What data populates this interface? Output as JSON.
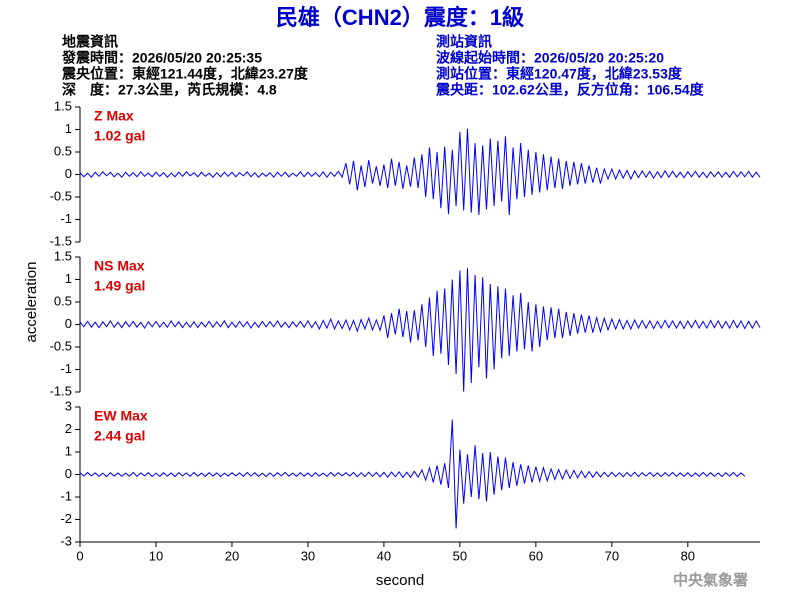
{
  "header": {
    "title": "民雄（CHN2）震度：1級",
    "left_info": [
      "地震資訊",
      "發震時間：2026/05/20 20:25:35",
      "震央位置：東經121.44度，北緯23.27度",
      "深　度：27.3公里，芮氏規模：4.8"
    ],
    "right_info": [
      "測站資訊",
      "波線起始時間：2026/05/20 20:25:20",
      "測站位置：東經120.47度，北緯23.53度",
      "震央距：102.62公里，反方位角：106.54度"
    ],
    "footer": "中央氣象署"
  },
  "chart_data": {
    "type": "line",
    "xlabel": "second",
    "ylabel": "acceleration",
    "xlim": [
      0,
      89.5
    ],
    "xticks": [
      0,
      10,
      20,
      30,
      40,
      50,
      60,
      70,
      80
    ],
    "x": [
      0,
      0.5,
      1,
      1.5,
      2,
      2.5,
      3,
      3.5,
      4,
      4.5,
      5,
      5.5,
      6,
      6.5,
      7,
      7.5,
      8,
      8.5,
      9,
      9.5,
      10,
      10.5,
      11,
      11.5,
      12,
      12.5,
      13,
      13.5,
      14,
      14.5,
      15,
      15.5,
      16,
      16.5,
      17,
      17.5,
      18,
      18.5,
      19,
      19.5,
      20,
      20.5,
      21,
      21.5,
      22,
      22.5,
      23,
      23.5,
      24,
      24.5,
      25,
      25.5,
      26,
      26.5,
      27,
      27.5,
      28,
      28.5,
      29,
      29.5,
      30,
      30.5,
      31,
      31.5,
      32,
      32.5,
      33,
      33.5,
      34,
      34.5,
      35,
      35.5,
      36,
      36.5,
      37,
      37.5,
      38,
      38.5,
      39,
      39.5,
      40,
      40.5,
      41,
      41.5,
      42,
      42.5,
      43,
      43.5,
      44,
      44.5,
      45,
      45.5,
      46,
      46.5,
      47,
      47.5,
      48,
      48.5,
      49,
      49.5,
      50,
      50.5,
      51,
      51.5,
      52,
      52.5,
      53,
      53.5,
      54,
      54.5,
      55,
      55.5,
      56,
      56.5,
      57,
      57.5,
      58,
      58.5,
      59,
      59.5,
      60,
      60.5,
      61,
      61.5,
      62,
      62.5,
      63,
      63.5,
      64,
      64.5,
      65,
      65.5,
      66,
      66.5,
      67,
      67.5,
      68,
      68.5,
      69,
      69.5,
      70,
      70.5,
      71,
      71.5,
      72,
      72.5,
      73,
      73.5,
      74,
      74.5,
      75,
      75.5,
      76,
      76.5,
      77,
      77.5,
      78,
      78.5,
      79,
      79.5,
      80,
      80.5,
      81,
      81.5,
      82,
      82.5,
      83,
      83.5,
      84,
      84.5,
      85,
      85.5,
      86,
      86.5,
      87,
      87.5,
      88,
      88.5,
      89,
      89.5
    ],
    "panels": [
      {
        "label": "Z Max",
        "max_label": "1.02 gal",
        "color": "#0000ff",
        "label_color": "#e00000",
        "ylim": [
          -1.5,
          1.5
        ],
        "yticks": [
          -1.5,
          -1,
          -0.5,
          0,
          0.5,
          1,
          1.5
        ],
        "values": [
          0.04,
          -0.05,
          0.03,
          -0.06,
          0.05,
          -0.04,
          0.06,
          -0.03,
          0.05,
          -0.05,
          0.03,
          -0.06,
          0.05,
          -0.04,
          0.04,
          -0.05,
          0.06,
          -0.04,
          0.03,
          -0.05,
          0.05,
          -0.04,
          0.04,
          -0.06,
          0.03,
          -0.05,
          0.05,
          -0.04,
          0.06,
          -0.03,
          0.04,
          -0.05,
          0.05,
          -0.04,
          0.03,
          -0.06,
          0.04,
          -0.05,
          0.05,
          -0.04,
          0.05,
          -0.05,
          0.04,
          -0.03,
          0.06,
          -0.05,
          0.04,
          -0.06,
          0.03,
          -0.04,
          0.04,
          -0.06,
          0.05,
          -0.04,
          0.05,
          -0.05,
          0.03,
          -0.04,
          0.06,
          -0.05,
          0.05,
          -0.04,
          0.04,
          -0.05,
          0.06,
          -0.06,
          0.05,
          -0.04,
          0.07,
          -0.06,
          0.25,
          -0.22,
          0.3,
          -0.35,
          0.2,
          -0.28,
          0.32,
          -0.2,
          0.18,
          -0.25,
          0.22,
          -0.3,
          0.35,
          -0.25,
          0.28,
          -0.32,
          0.2,
          -0.27,
          0.38,
          -0.3,
          0.45,
          -0.5,
          0.6,
          -0.55,
          0.5,
          -0.75,
          0.62,
          -0.88,
          0.55,
          -0.7,
          0.95,
          -0.8,
          1.02,
          -0.85,
          0.7,
          -0.9,
          0.65,
          -0.78,
          0.8,
          -0.7,
          0.75,
          -0.6,
          0.85,
          -0.9,
          0.6,
          -0.55,
          0.7,
          -0.5,
          0.55,
          -0.45,
          0.5,
          -0.4,
          0.45,
          -0.35,
          0.4,
          -0.3,
          0.35,
          -0.32,
          0.3,
          -0.25,
          0.28,
          -0.22,
          0.25,
          -0.2,
          0.2,
          -0.18,
          0.15,
          -0.2,
          0.12,
          -0.1,
          0.12,
          -0.1,
          0.1,
          -0.08,
          0.09,
          -0.1,
          0.08,
          -0.07,
          0.08,
          -0.06,
          0.07,
          -0.08,
          0.06,
          -0.07,
          0.08,
          -0.06,
          0.07,
          -0.06,
          0.05,
          -0.07,
          0.06,
          -0.05,
          0.07,
          -0.06,
          0.05,
          -0.07,
          0.06,
          -0.05,
          0.06,
          -0.06,
          0.05,
          -0.06,
          0.07,
          -0.05,
          0.06,
          -0.05,
          0.07,
          -0.06,
          0.05,
          -0.06
        ]
      },
      {
        "label": "NS Max",
        "max_label": "1.49 gal",
        "color": "#0000ff",
        "label_color": "#e00000",
        "ylim": [
          -1.5,
          1.5
        ],
        "yticks": [
          -1.5,
          -1,
          -0.5,
          0,
          0.5,
          1,
          1.5
        ],
        "values": [
          0.06,
          -0.05,
          0.07,
          -0.06,
          0.05,
          -0.07,
          0.06,
          -0.05,
          0.08,
          -0.06,
          0.05,
          -0.07,
          0.06,
          -0.05,
          0.07,
          -0.06,
          0.05,
          -0.08,
          0.06,
          -0.05,
          0.07,
          -0.06,
          0.05,
          -0.06,
          0.08,
          -0.05,
          0.06,
          -0.07,
          0.05,
          -0.06,
          0.06,
          -0.07,
          0.05,
          -0.05,
          0.07,
          -0.06,
          0.06,
          -0.05,
          0.08,
          -0.07,
          0.05,
          -0.06,
          0.07,
          -0.05,
          0.06,
          -0.08,
          0.05,
          -0.06,
          0.07,
          -0.05,
          0.06,
          -0.05,
          0.08,
          -0.06,
          0.05,
          -0.07,
          0.06,
          -0.05,
          0.07,
          -0.06,
          0.08,
          -0.07,
          0.06,
          -0.1,
          0.09,
          -0.08,
          0.12,
          -0.1,
          0.08,
          -0.09,
          0.1,
          -0.12,
          0.09,
          -0.15,
          0.11,
          -0.1,
          0.14,
          -0.12,
          0.1,
          -0.13,
          0.2,
          -0.3,
          0.25,
          -0.22,
          0.35,
          -0.28,
          0.3,
          -0.4,
          0.32,
          -0.35,
          0.45,
          -0.5,
          0.6,
          -0.7,
          0.75,
          -0.65,
          0.8,
          -0.9,
          1.0,
          -1.1,
          1.2,
          -1.49,
          1.25,
          -1.3,
          1.1,
          -0.95,
          1.05,
          -1.2,
          0.9,
          -1.0,
          0.85,
          -0.75,
          0.8,
          -0.7,
          0.65,
          -0.6,
          0.7,
          -0.55,
          0.5,
          -0.6,
          0.45,
          -0.5,
          0.4,
          -0.35,
          0.38,
          -0.3,
          0.35,
          -0.3,
          0.28,
          -0.25,
          0.25,
          -0.2,
          0.22,
          -0.18,
          0.2,
          -0.18,
          0.15,
          -0.16,
          0.14,
          -0.12,
          0.12,
          -0.1,
          0.11,
          -0.1,
          0.09,
          -0.1,
          0.1,
          -0.08,
          0.09,
          -0.08,
          0.08,
          -0.09,
          0.07,
          -0.08,
          0.09,
          -0.07,
          0.08,
          -0.08,
          0.07,
          -0.09,
          0.08,
          -0.07,
          0.09,
          -0.08,
          0.07,
          -0.08,
          0.09,
          -0.07,
          0.08,
          -0.08,
          0.07,
          -0.08,
          0.09,
          -0.07,
          0.08,
          -0.09,
          0.07,
          -0.08,
          0.08,
          -0.07
        ]
      },
      {
        "label": "EW Max",
        "max_label": "2.44 gal",
        "color": "#0000ff",
        "label_color": "#e00000",
        "ylim": [
          -3,
          3
        ],
        "yticks": [
          -3,
          -2,
          -1,
          0,
          1,
          2,
          3
        ],
        "values": [
          0.08,
          -0.07,
          0.09,
          -0.06,
          0.07,
          -0.08,
          0.06,
          -0.09,
          0.08,
          -0.07,
          0.07,
          -0.08,
          0.06,
          -0.07,
          0.09,
          -0.08,
          0.07,
          -0.06,
          0.08,
          -0.09,
          0.06,
          -0.08,
          0.08,
          -0.07,
          0.07,
          -0.09,
          0.08,
          -0.06,
          0.07,
          -0.08,
          0.09,
          -0.07,
          0.06,
          -0.08,
          0.08,
          -0.07,
          0.07,
          -0.09,
          0.06,
          -0.07,
          0.08,
          -0.06,
          0.07,
          -0.08,
          0.09,
          -0.07,
          0.08,
          -0.08,
          0.06,
          -0.09,
          0.07,
          -0.08,
          0.08,
          -0.06,
          0.09,
          -0.07,
          0.06,
          -0.08,
          0.08,
          -0.07,
          0.07,
          -0.09,
          0.08,
          -0.07,
          0.06,
          -0.08,
          0.09,
          -0.07,
          0.08,
          -0.06,
          0.08,
          -0.07,
          0.09,
          -0.1,
          0.08,
          -0.09,
          0.1,
          -0.08,
          0.09,
          -0.1,
          0.1,
          -0.12,
          0.11,
          -0.1,
          0.12,
          -0.13,
          0.1,
          -0.12,
          0.14,
          -0.12,
          0.2,
          -0.25,
          0.3,
          -0.35,
          0.4,
          -0.45,
          0.5,
          -0.6,
          2.44,
          -2.4,
          1.1,
          -1.3,
          0.9,
          -1.0,
          1.3,
          -1.1,
          0.95,
          -1.2,
          1.0,
          -0.9,
          0.8,
          -0.7,
          0.75,
          -0.6,
          0.55,
          -0.5,
          0.45,
          -0.4,
          0.4,
          -0.35,
          0.35,
          -0.3,
          0.3,
          -0.28,
          0.25,
          -0.22,
          0.22,
          -0.2,
          0.2,
          -0.18,
          0.18,
          -0.15,
          0.15,
          -0.14,
          0.13,
          -0.12,
          0.12,
          -0.11,
          0.1,
          -0.1,
          0.1,
          -0.09,
          0.08,
          -0.1,
          0.09,
          -0.08,
          0.1,
          -0.09,
          0.08,
          -0.07,
          0.09,
          -0.08,
          0.07,
          -0.09,
          0.08,
          -0.07,
          0.09,
          -0.08,
          0.07,
          -0.08,
          0.08,
          -0.09,
          0.07,
          -0.08,
          0.09,
          -0.07,
          0.08,
          -0.08,
          0.07,
          -0.09,
          0.08,
          -0.07,
          0.09,
          -0.08,
          0.07,
          -0.08
        ]
      }
    ]
  }
}
